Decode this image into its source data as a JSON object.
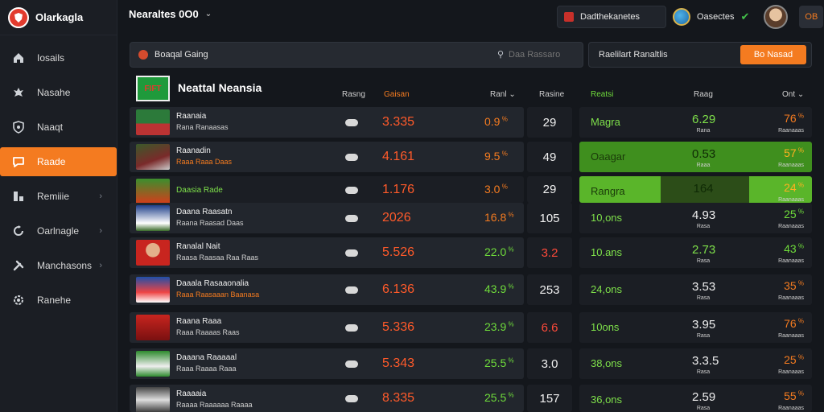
{
  "brand": {
    "name": "Olarkagla"
  },
  "sidebar": {
    "items": [
      {
        "label": "Iosails",
        "icon": "home-icon"
      },
      {
        "label": "Nasahe",
        "icon": "leaf-icon"
      },
      {
        "label": "Naaqt",
        "icon": "shield-icon"
      },
      {
        "label": "Raade",
        "icon": "chat-icon",
        "active": true
      },
      {
        "label": "Remiiie",
        "icon": "grid-icon",
        "chevron": "›"
      },
      {
        "label": "Oarlnagle",
        "icon": "refresh-icon",
        "chevron": "›"
      },
      {
        "label": "Manchasons",
        "icon": "tools-icon",
        "chevron": "›"
      },
      {
        "label": "Ranehe",
        "icon": "gear-icon"
      }
    ]
  },
  "header": {
    "title": "Nearaltes 0O0",
    "league_label": "Dadthekanetes",
    "user_name": "Oasectes",
    "user_btn": "OB"
  },
  "search": {
    "left_label": "Boaqal Gaing",
    "placeholder": "Daa Rassaro"
  },
  "filter": {
    "label": "Raelilart Ranaltlis",
    "button": "Bo Nasad"
  },
  "table": {
    "logo_text": "FIFT",
    "title": "Neattal Neansia",
    "headers": {
      "col1": "Rasng",
      "col2": "Gaisan",
      "col3": "Ranl",
      "col4": "Rasine",
      "col5": "Reatsi",
      "col6": "Raag",
      "col7": "Ont"
    },
    "rows": [
      {
        "name": "Raanaia",
        "sub": "Rana Ranaasas",
        "v1": "3.335",
        "v2": "0.9",
        "count": "29",
        "r_label": "Magra",
        "r_val": "6.29",
        "r_sub": "Rana",
        "r_odd": "76",
        "r_oddsub": "Raanaaas"
      },
      {
        "name": "Raanadin",
        "sub": "Raaa Raaa Daas",
        "v1": "4.161",
        "v2": "9.5",
        "count": "49",
        "r_label": "Oaagar",
        "r_val": "0.53",
        "r_sub": "Raaa",
        "r_odd": "57",
        "r_oddsub": "Raanaaas"
      },
      {
        "name": "Daasia Rade",
        "sub": "",
        "v1": "1.176",
        "v2": "3.0",
        "count": "29",
        "r_label": "Rangra",
        "r_val": "164",
        "r_sub": "",
        "r_odd": "24",
        "r_oddsub": "Raanaaas"
      },
      {
        "name": "Daana Raasatn",
        "sub": "Raana Raasad Daas",
        "v1": "2026",
        "v2": "16.8",
        "count": "105",
        "r_label": "10,ons",
        "r_val": "4.93",
        "r_sub": "Rasa",
        "r_odd": "25",
        "r_oddsub": "Raanaaas"
      },
      {
        "name": "Ranalal Nait",
        "sub": "Raasa Raasaa Raa Raas",
        "v1": "5.526",
        "v2": "22.0",
        "count": "3.2",
        "r_label": "10.ans",
        "r_val": "2.73",
        "r_sub": "Rasa",
        "r_odd": "43",
        "r_oddsub": "Raanaaas"
      },
      {
        "name": "Daaala Rasaaonalia",
        "sub": "Raaa Raasaaan Baanasa",
        "v1": "6.136",
        "v2": "43.9",
        "count": "253",
        "r_label": "24,ons",
        "r_val": "3.53",
        "r_sub": "Rasa",
        "r_odd": "35",
        "r_oddsub": "Raanaaas"
      },
      {
        "name": "Raana Raaa",
        "sub": "Raaa Raaaas Raas",
        "v1": "5.336",
        "v2": "23.9",
        "count": "6.6",
        "r_label": "10ons",
        "r_val": "3.95",
        "r_sub": "Rasa",
        "r_odd": "76",
        "r_oddsub": "Raanaaas"
      },
      {
        "name": "Daaana Raaaaal",
        "sub": "Raaa Raaaa Raaa",
        "v1": "5.343",
        "v2": "25.5",
        "count": "3.0",
        "r_label": "38,ons",
        "r_val": "3.3.5",
        "r_sub": "Rasa",
        "r_odd": "25",
        "r_oddsub": "Raanaaas"
      },
      {
        "name": "Raaaaia",
        "sub": "Raaaa Raaaaaa Raaaa",
        "v1": "8.335",
        "v2": "25.5",
        "count": "157",
        "r_label": "36,ons",
        "r_val": "2.59",
        "r_sub": "Rasa",
        "r_odd": "55",
        "r_oddsub": "Raanaaas"
      }
    ]
  },
  "colors": {
    "accent": "#f47b20",
    "green": "#6fdc3b",
    "red": "#ff5a2a",
    "bg": "#14171c"
  }
}
